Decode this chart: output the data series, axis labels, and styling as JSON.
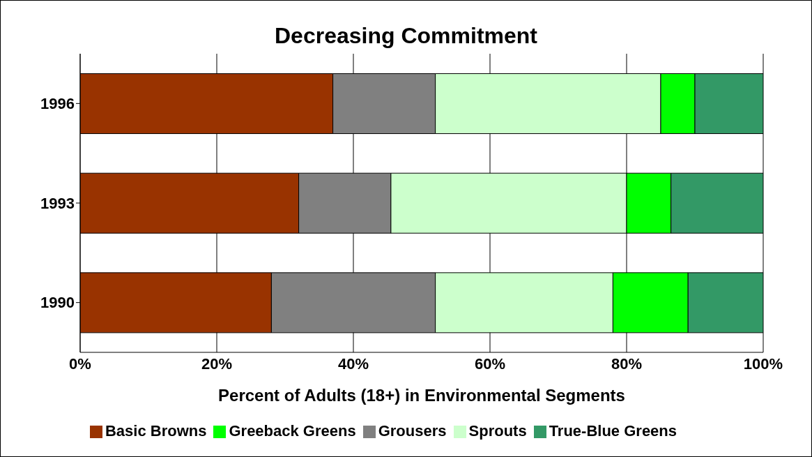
{
  "chart_data": {
    "type": "bar",
    "orientation": "horizontal",
    "stacked": true,
    "title": "Decreasing Commitment",
    "xlabel": "Percent of Adults (18+) in Environmental Segments",
    "categories": [
      "1996",
      "1993",
      "1990"
    ],
    "series": [
      {
        "name": "Basic Browns",
        "color": "#993300",
        "values": [
          37,
          32,
          28
        ]
      },
      {
        "name": "Grousers",
        "color": "#808080",
        "values": [
          15,
          13.5,
          24
        ]
      },
      {
        "name": "Sprouts",
        "color": "#ccffcc",
        "values": [
          33,
          34.5,
          26
        ]
      },
      {
        "name": "Greeback Greens",
        "color": "#00ff00",
        "values": [
          5,
          6.5,
          11
        ]
      },
      {
        "name": "True-Blue Greens",
        "color": "#339966",
        "values": [
          10,
          13.5,
          11
        ]
      }
    ],
    "xlim": [
      0,
      100
    ],
    "xticks": [
      {
        "value": 0,
        "label": "0%"
      },
      {
        "value": 20,
        "label": "20%"
      },
      {
        "value": 40,
        "label": "40%"
      },
      {
        "value": 60,
        "label": "60%"
      },
      {
        "value": 80,
        "label": "80%"
      },
      {
        "value": 100,
        "label": "100%"
      }
    ],
    "grid": "x",
    "legend": "bottom"
  }
}
